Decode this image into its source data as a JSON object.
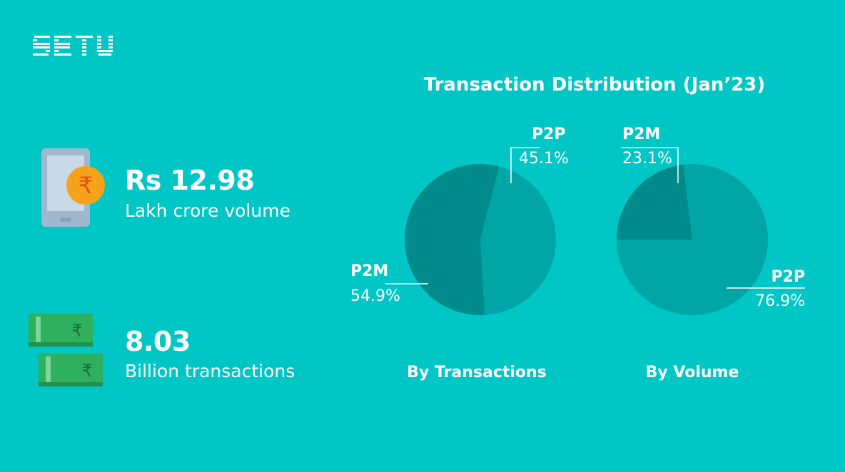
{
  "brand": {
    "logo_text": "SETU"
  },
  "stats": [
    {
      "icon": "phone-rupee-icon",
      "value": "Rs 12.98",
      "label": "Lakh crore volume"
    },
    {
      "icon": "cash-notes-icon",
      "value": "8.03",
      "label": "Billion transactions"
    }
  ],
  "chart_data": {
    "title": "Transaction Distribution (Jan’23)",
    "charts": [
      {
        "type": "pie",
        "caption": "By Transactions",
        "slices": [
          {
            "name": "P2P",
            "value": 45.1,
            "display": "45.1%",
            "color": "#00a5a5"
          },
          {
            "name": "P2M",
            "value": 54.9,
            "display": "54.9%",
            "color": "#008a8a"
          }
        ]
      },
      {
        "type": "pie",
        "caption": "By Volume",
        "slices": [
          {
            "name": "P2M",
            "value": 23.1,
            "display": "23.1%",
            "color": "#008a8a"
          },
          {
            "name": "P2P",
            "value": 76.9,
            "display": "76.9%",
            "color": "#00a5a5"
          }
        ]
      }
    ]
  },
  "colors": {
    "background": "#00c6c6",
    "slice_dark": "#008a8a",
    "slice_light": "#00a5a5",
    "coin": "#f7a21b",
    "cash": "#2eb05c"
  }
}
